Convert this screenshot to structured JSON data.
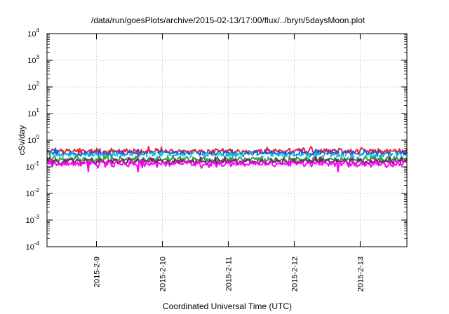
{
  "chart_data": {
    "type": "line",
    "title": "/data/run/goesPlots/archive/2015-02-13/17:00/flux/../bryn/5daysMoon.plot",
    "xlabel": "Coordinated Universal Time (UTC)",
    "ylabel": "cSv/day",
    "yscale": "log",
    "ylim": [
      0.0001,
      10000
    ],
    "xlim": [
      "2015-02-08 06:00",
      "2015-02-13 17:00"
    ],
    "grid": true,
    "y_ticks": [
      {
        "base": "10",
        "exp": "-4"
      },
      {
        "base": "10",
        "exp": "-3"
      },
      {
        "base": "10",
        "exp": "-2"
      },
      {
        "base": "10",
        "exp": "-1"
      },
      {
        "base": "10",
        "exp": "0"
      },
      {
        "base": "10",
        "exp": "1"
      },
      {
        "base": "10",
        "exp": "2"
      },
      {
        "base": "10",
        "exp": "3"
      },
      {
        "base": "10",
        "exp": "4"
      }
    ],
    "x_ticks": [
      "2015-2-9",
      "2015-2-10",
      "2015-2-11",
      "2015-2-12",
      "2015-2-13"
    ],
    "x_tick_dates": [
      "2015-02-09 00:00",
      "2015-02-10 00:00",
      "2015-02-11 00:00",
      "2015-02-12 00:00",
      "2015-02-13 00:00"
    ],
    "series": [
      {
        "color": "#e8212a",
        "level": 0.38,
        "dips": [
          "2015-02-09 15:00",
          "2015-02-10 16:00"
        ]
      },
      {
        "color": "#1f56f0",
        "level": 0.32,
        "dips": [
          "2015-02-08 21:00",
          "2015-02-10 16:00",
          "2015-02-12 21:00"
        ]
      },
      {
        "color": "#00c8d8",
        "level": 0.26,
        "dips": []
      },
      {
        "color": "#ffffff",
        "level": 0.22,
        "dips": []
      },
      {
        "color": "#2e9e3e",
        "level": 0.19,
        "dips": []
      },
      {
        "color": "#7a1f66",
        "level": 0.16,
        "dips": []
      },
      {
        "color": "#ff00ff",
        "level": 0.13,
        "dips": [
          "2015-02-08 21:00",
          "2015-02-09 15:00",
          "2015-02-12 16:00"
        ]
      }
    ]
  }
}
